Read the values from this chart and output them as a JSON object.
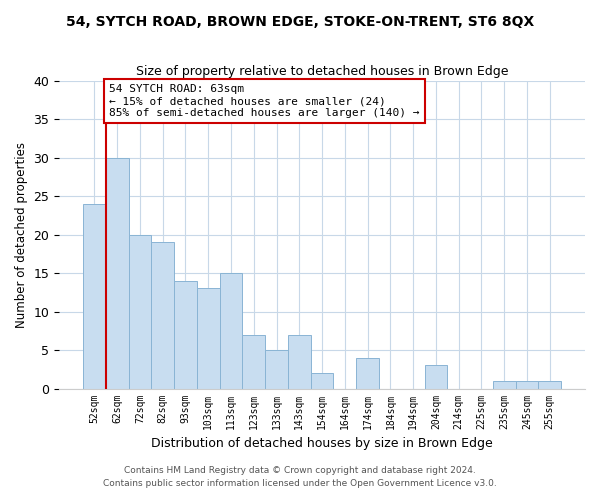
{
  "title": "54, SYTCH ROAD, BROWN EDGE, STOKE-ON-TRENT, ST6 8QX",
  "subtitle": "Size of property relative to detached houses in Brown Edge",
  "xlabel": "Distribution of detached houses by size in Brown Edge",
  "ylabel": "Number of detached properties",
  "bin_labels": [
    "52sqm",
    "62sqm",
    "72sqm",
    "82sqm",
    "93sqm",
    "103sqm",
    "113sqm",
    "123sqm",
    "133sqm",
    "143sqm",
    "154sqm",
    "164sqm",
    "174sqm",
    "184sqm",
    "194sqm",
    "204sqm",
    "214sqm",
    "225sqm",
    "235sqm",
    "245sqm",
    "255sqm"
  ],
  "bar_heights": [
    24,
    30,
    20,
    19,
    14,
    13,
    15,
    7,
    5,
    7,
    2,
    0,
    4,
    0,
    0,
    3,
    0,
    0,
    1,
    1,
    1
  ],
  "bar_color": "#c8ddf0",
  "bar_edge_color": "#8ab4d4",
  "marker_color": "#cc0000",
  "annotation_title": "54 SYTCH ROAD: 63sqm",
  "annotation_line1": "← 15% of detached houses are smaller (24)",
  "annotation_line2": "85% of semi-detached houses are larger (140) →",
  "ylim": [
    0,
    40
  ],
  "yticks": [
    0,
    5,
    10,
    15,
    20,
    25,
    30,
    35,
    40
  ],
  "footer1": "Contains HM Land Registry data © Crown copyright and database right 2024.",
  "footer2": "Contains public sector information licensed under the Open Government Licence v3.0.",
  "bg_color": "#ffffff",
  "plot_bg_color": "#ffffff",
  "grid_color": "#c8d8e8"
}
